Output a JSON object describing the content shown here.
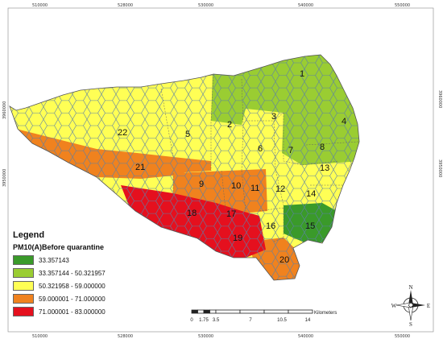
{
  "map": {
    "title": "",
    "top_ticks": [
      "510000",
      "528000",
      "530000",
      "540000",
      "550000"
    ],
    "bottom_ticks": [
      "510000",
      "528000",
      "530000",
      "540000",
      "550000"
    ],
    "left_ticks": [
      "3960000",
      "3950000"
    ],
    "right_ticks": [
      "3960000",
      "3950000"
    ],
    "districts": [
      "1",
      "2",
      "3",
      "4",
      "5",
      "6",
      "7",
      "8",
      "9",
      "10",
      "11",
      "12",
      "13",
      "14",
      "15",
      "16",
      "17",
      "18",
      "19",
      "20",
      "21",
      "22"
    ]
  },
  "legend": {
    "title": "Legend",
    "subtitle": "PM10(A)Before quarantine",
    "classes": [
      {
        "label": "33.357143",
        "color": "#3a9a2a"
      },
      {
        "label": "33.357144 - 50.321957",
        "color": "#9acd32"
      },
      {
        "label": "50.321958 - 59.000000",
        "color": "#ffff55"
      },
      {
        "label": "59.000001 - 71.000000",
        "color": "#f0821e"
      },
      {
        "label": "71.000001 - 83.000000",
        "color": "#e5101e"
      }
    ]
  },
  "scale_bar": {
    "unit": "Kilometers",
    "ticks": [
      "0",
      "1.75",
      "3.5",
      "7",
      "10.5",
      "14"
    ]
  },
  "compass": {
    "n": "N",
    "s": "S",
    "e": "E",
    "w": "W"
  }
}
